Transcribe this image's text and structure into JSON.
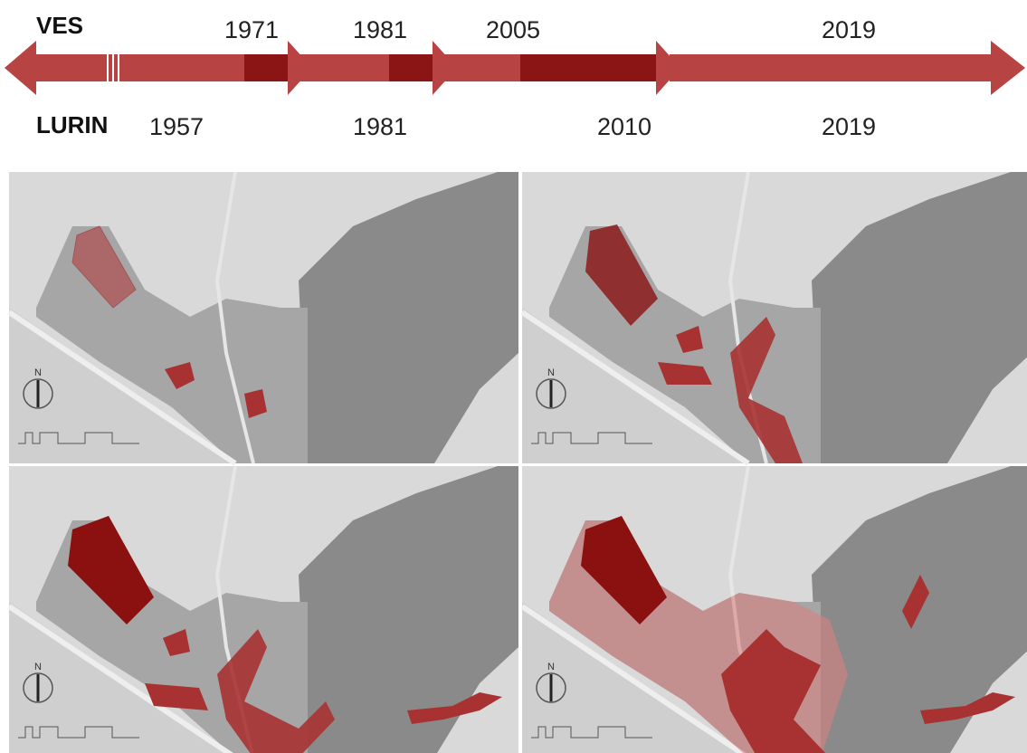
{
  "timeline": {
    "top": {
      "label": "VES",
      "years": [
        "1971",
        "1981",
        "2005",
        "2019"
      ]
    },
    "bottom": {
      "label": "LURIN",
      "years": [
        "1957",
        "1981",
        "2010",
        "2019"
      ]
    }
  },
  "maps": [
    {
      "north": "N"
    },
    {
      "north": "N"
    },
    {
      "north": "N"
    },
    {
      "north": "N"
    }
  ]
}
